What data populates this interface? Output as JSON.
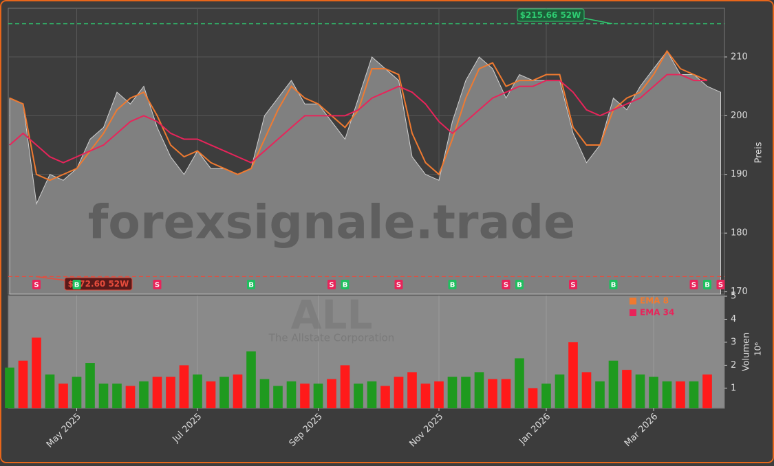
{
  "chart_data": {
    "type": "stock",
    "categories": [
      null,
      null,
      null,
      null,
      null,
      "May 2025",
      null,
      null,
      null,
      null,
      null,
      null,
      null,
      null,
      "Jul 2025",
      null,
      null,
      null,
      null,
      null,
      null,
      null,
      null,
      "Sep 2025",
      null,
      null,
      null,
      null,
      null,
      null,
      null,
      null,
      "Nov 2025",
      null,
      null,
      null,
      null,
      null,
      null,
      null,
      "Jan 2026",
      null,
      null,
      null,
      null,
      null,
      null,
      null,
      "Mar 2026",
      null,
      null,
      null,
      null,
      null
    ],
    "values": [
      203,
      202,
      185,
      190,
      189,
      191,
      196,
      198,
      204,
      202,
      205,
      198,
      193,
      190,
      194,
      191,
      191,
      190,
      191,
      200,
      203,
      206,
      202,
      202,
      199,
      196,
      203,
      210,
      208,
      206,
      193,
      190,
      189,
      199,
      206,
      210,
      208,
      203,
      207,
      206,
      206,
      206,
      197,
      192,
      195,
      203,
      201,
      205,
      208,
      211,
      207,
      207,
      205,
      204
    ],
    "color": "#808080",
    "series": [
      {
        "name": "EMA 8",
        "color": "#f07a30",
        "values": [
          203,
          202,
          190,
          189,
          190,
          191,
          194,
          197,
          201,
          203,
          204,
          200,
          195,
          193,
          194,
          192,
          191,
          190,
          191,
          196,
          201,
          205,
          203,
          202,
          200,
          198,
          201,
          208,
          208,
          207,
          197,
          192,
          190,
          196,
          203,
          208,
          209,
          205,
          206,
          206,
          207,
          207,
          198,
          195,
          195,
          201,
          203,
          204,
          207,
          211,
          208,
          207,
          206,
          null
        ]
      },
      {
        "name": "EMA 34",
        "color": "#e8245a",
        "values": [
          195,
          197,
          195,
          193,
          192,
          193,
          194,
          195,
          197,
          199,
          200,
          199,
          197,
          196,
          196,
          195,
          194,
          193,
          192,
          194,
          196,
          198,
          200,
          200,
          200,
          200,
          201,
          203,
          204,
          205,
          204,
          202,
          199,
          197,
          199,
          201,
          203,
          204,
          205,
          205,
          206,
          206,
          204,
          201,
          200,
          201,
          202,
          203,
          205,
          207,
          207,
          206,
          206,
          null
        ]
      }
    ],
    "ylim": [
      169.6,
      218.3
    ],
    "yticks": [
      170,
      180,
      190,
      200,
      210
    ],
    "y_label": "Preis",
    "grid": true,
    "high_line": {
      "value": 215.66,
      "label": "$215.66 52W",
      "color": "#2ecc71"
    },
    "low_line": {
      "value": 172.6,
      "label": "$172.60 52W",
      "color": "#e74c3c"
    },
    "signals": [
      null,
      null,
      "S",
      null,
      null,
      "B",
      null,
      null,
      null,
      null,
      null,
      "S",
      null,
      null,
      null,
      null,
      null,
      null,
      "B",
      null,
      null,
      null,
      null,
      null,
      "S",
      "B",
      null,
      null,
      null,
      "S",
      null,
      null,
      null,
      "B",
      null,
      null,
      null,
      "S",
      "B",
      null,
      null,
      null,
      "S",
      null,
      null,
      "B",
      null,
      null,
      null,
      null,
      null,
      "S",
      "B",
      "S"
    ],
    "watermark": "forexsignale.trade",
    "ticker": "ALL",
    "company": "The Allstate Corporation",
    "volume": {
      "values": [
        1.9,
        2.2,
        3.2,
        1.6,
        1.2,
        1.5,
        2.1,
        1.2,
        1.2,
        1.1,
        1.3,
        1.5,
        1.5,
        2.0,
        1.6,
        1.3,
        1.5,
        1.6,
        2.6,
        1.4,
        1.1,
        1.3,
        1.2,
        1.2,
        1.4,
        2.0,
        1.2,
        1.3,
        1.1,
        1.5,
        1.7,
        1.2,
        1.3,
        1.5,
        1.5,
        1.7,
        1.4,
        1.4,
        2.3,
        1.0,
        1.2,
        1.6,
        3.0,
        1.7,
        1.3,
        2.2,
        1.8,
        1.6,
        1.5,
        1.3,
        1.3,
        1.3,
        1.6,
        null
      ],
      "ylim": [
        0.13,
        5.03
      ],
      "yticks": [
        1,
        2,
        3,
        4,
        5
      ],
      "y_label": "Volumen",
      "exponent_label": "10⁶",
      "up_color": "#1f9a1f",
      "down_color": "#ff1a1a"
    }
  }
}
